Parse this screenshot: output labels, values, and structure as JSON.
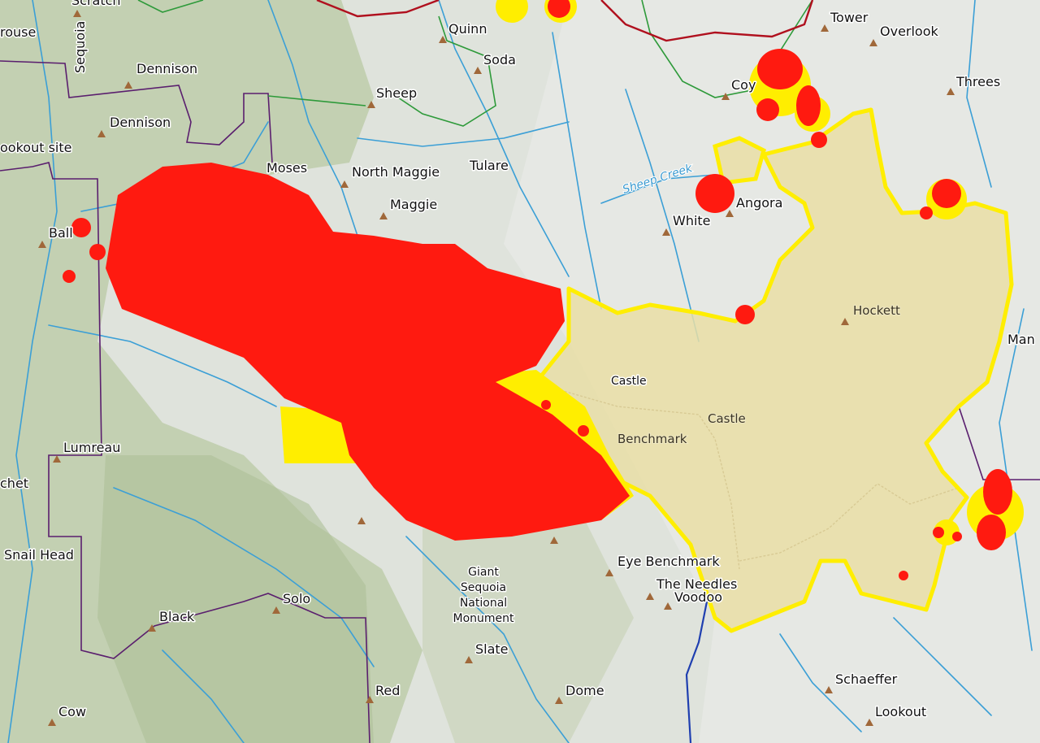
{
  "map": {
    "colors": {
      "terrain": "#dfe3dc",
      "forest": "#b9c9a6",
      "river": "#3b9fd6",
      "boundary": "#5a1e6e",
      "trail": "#2e9a3a",
      "road": "#b0101e",
      "fire_perimeter": "#ffee00",
      "perimeter_fill": "#e9dea6",
      "hotspot_recent": "#ff1a10",
      "hotspot_older": "#ffee00",
      "peak": "#a0683a"
    },
    "icons": {
      "peak": "triangle-peak-icon"
    },
    "labels": {
      "scratch": "Scratch",
      "grouse": "rouse",
      "sequoia": "Sequoia",
      "dennison_1": "Dennison",
      "dennison_2": "Dennison",
      "lookout_site": "ookout site",
      "ball": "Ball",
      "moses": "Moses",
      "north_maggie": "North Maggie",
      "maggie": "Maggie",
      "tulare": "Tulare",
      "sheep": "Sheep",
      "quinn": "Quinn",
      "soda": "Soda",
      "tower": "Tower",
      "overlook": "Overlook",
      "threes": "Threes",
      "coy": "Coy",
      "sheep_creek": "Sheep Creek",
      "angora": "Angora",
      "white": "White",
      "hockett": "Hockett",
      "castle_1": "Castle",
      "castle_2": "Castle",
      "benchmark": "Benchmark",
      "man": "Man",
      "eye_benchmark": "Eye Benchmark",
      "the_needles": "The Needles",
      "voodoo": "Voodoo",
      "lumreau": "Lumreau",
      "chet": "chet",
      "snail_head": "Snail Head",
      "black": "Black",
      "solo": "Solo",
      "gsnm_1": "Giant",
      "gsnm_2": "Sequoia",
      "gsnm_3": "National",
      "gsnm_4": "Monument",
      "slate": "Slate",
      "dome": "Dome",
      "red": "Red",
      "cow": "Cow",
      "schaeffer": "Schaeffer",
      "lookout": "Lookout"
    }
  }
}
